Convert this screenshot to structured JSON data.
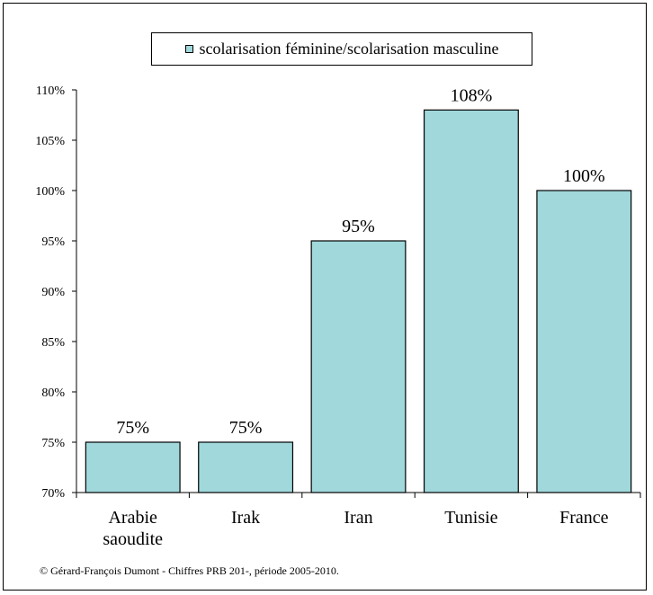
{
  "chart_data": {
    "type": "bar",
    "categories": [
      "Arabie saoudite",
      "Irak",
      "Iran",
      "Tunisie",
      "France"
    ],
    "series": [
      {
        "name": "scolarisation féminine/scolarisation masculine",
        "values": [
          75,
          75,
          95,
          108,
          100
        ]
      }
    ],
    "data_labels": [
      "75%",
      "75%",
      "95%",
      "108%",
      "100%"
    ],
    "y_ticks": [
      "70%",
      "75%",
      "80%",
      "85%",
      "90%",
      "95%",
      "100%",
      "105%",
      "110%"
    ],
    "ylim": [
      70,
      110
    ],
    "grid": false,
    "legend_position": "top",
    "bar_color": "#a0d8dc",
    "title": "",
    "xlabel": "",
    "ylabel": ""
  },
  "source_text": "© Gérard-François Dumont - Chiffres PRB 201-, période 2005-2010."
}
